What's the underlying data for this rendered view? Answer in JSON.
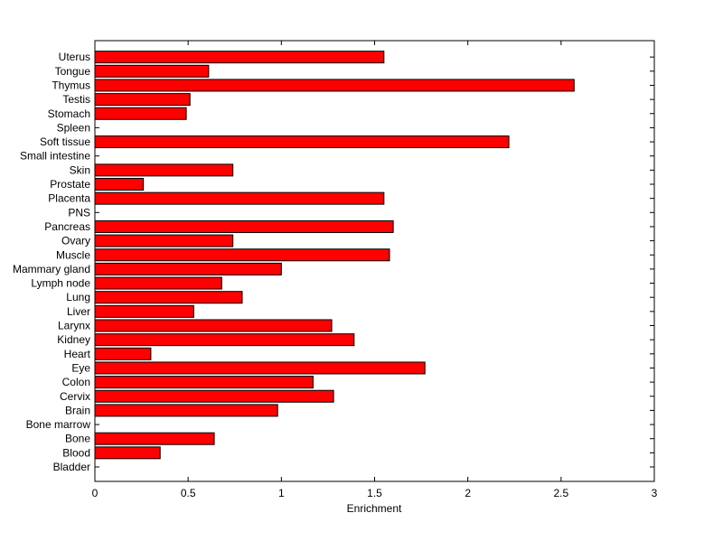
{
  "chart_data": {
    "type": "bar",
    "orientation": "horizontal",
    "title": "",
    "xlabel": "Enrichment",
    "ylabel": "",
    "xlim": [
      0,
      3
    ],
    "xticks": [
      "0",
      "0.5",
      "1",
      "1.5",
      "2",
      "2.5",
      "3"
    ],
    "grid": false,
    "bar_color": "#ff0000",
    "edge_color": "#000000",
    "categories": [
      "Bladder",
      "Blood",
      "Bone",
      "Bone marrow",
      "Brain",
      "Cervix",
      "Colon",
      "Eye",
      "Heart",
      "Kidney",
      "Larynx",
      "Liver",
      "Lung",
      "Lymph node",
      "Mammary gland",
      "Muscle",
      "Ovary",
      "Pancreas",
      "PNS",
      "Placenta",
      "Prostate",
      "Skin",
      "Small intestine",
      "Soft tissue",
      "Spleen",
      "Stomach",
      "Testis",
      "Thymus",
      "Tongue",
      "Uterus"
    ],
    "values": [
      0,
      0.35,
      0.64,
      0,
      0.98,
      1.28,
      1.17,
      1.77,
      0.3,
      1.39,
      1.27,
      0.53,
      0.79,
      0.68,
      1.0,
      1.58,
      0.74,
      1.6,
      0,
      1.55,
      0.26,
      0.74,
      0,
      2.22,
      0,
      0.49,
      0.51,
      2.57,
      0.61,
      1.55
    ]
  }
}
